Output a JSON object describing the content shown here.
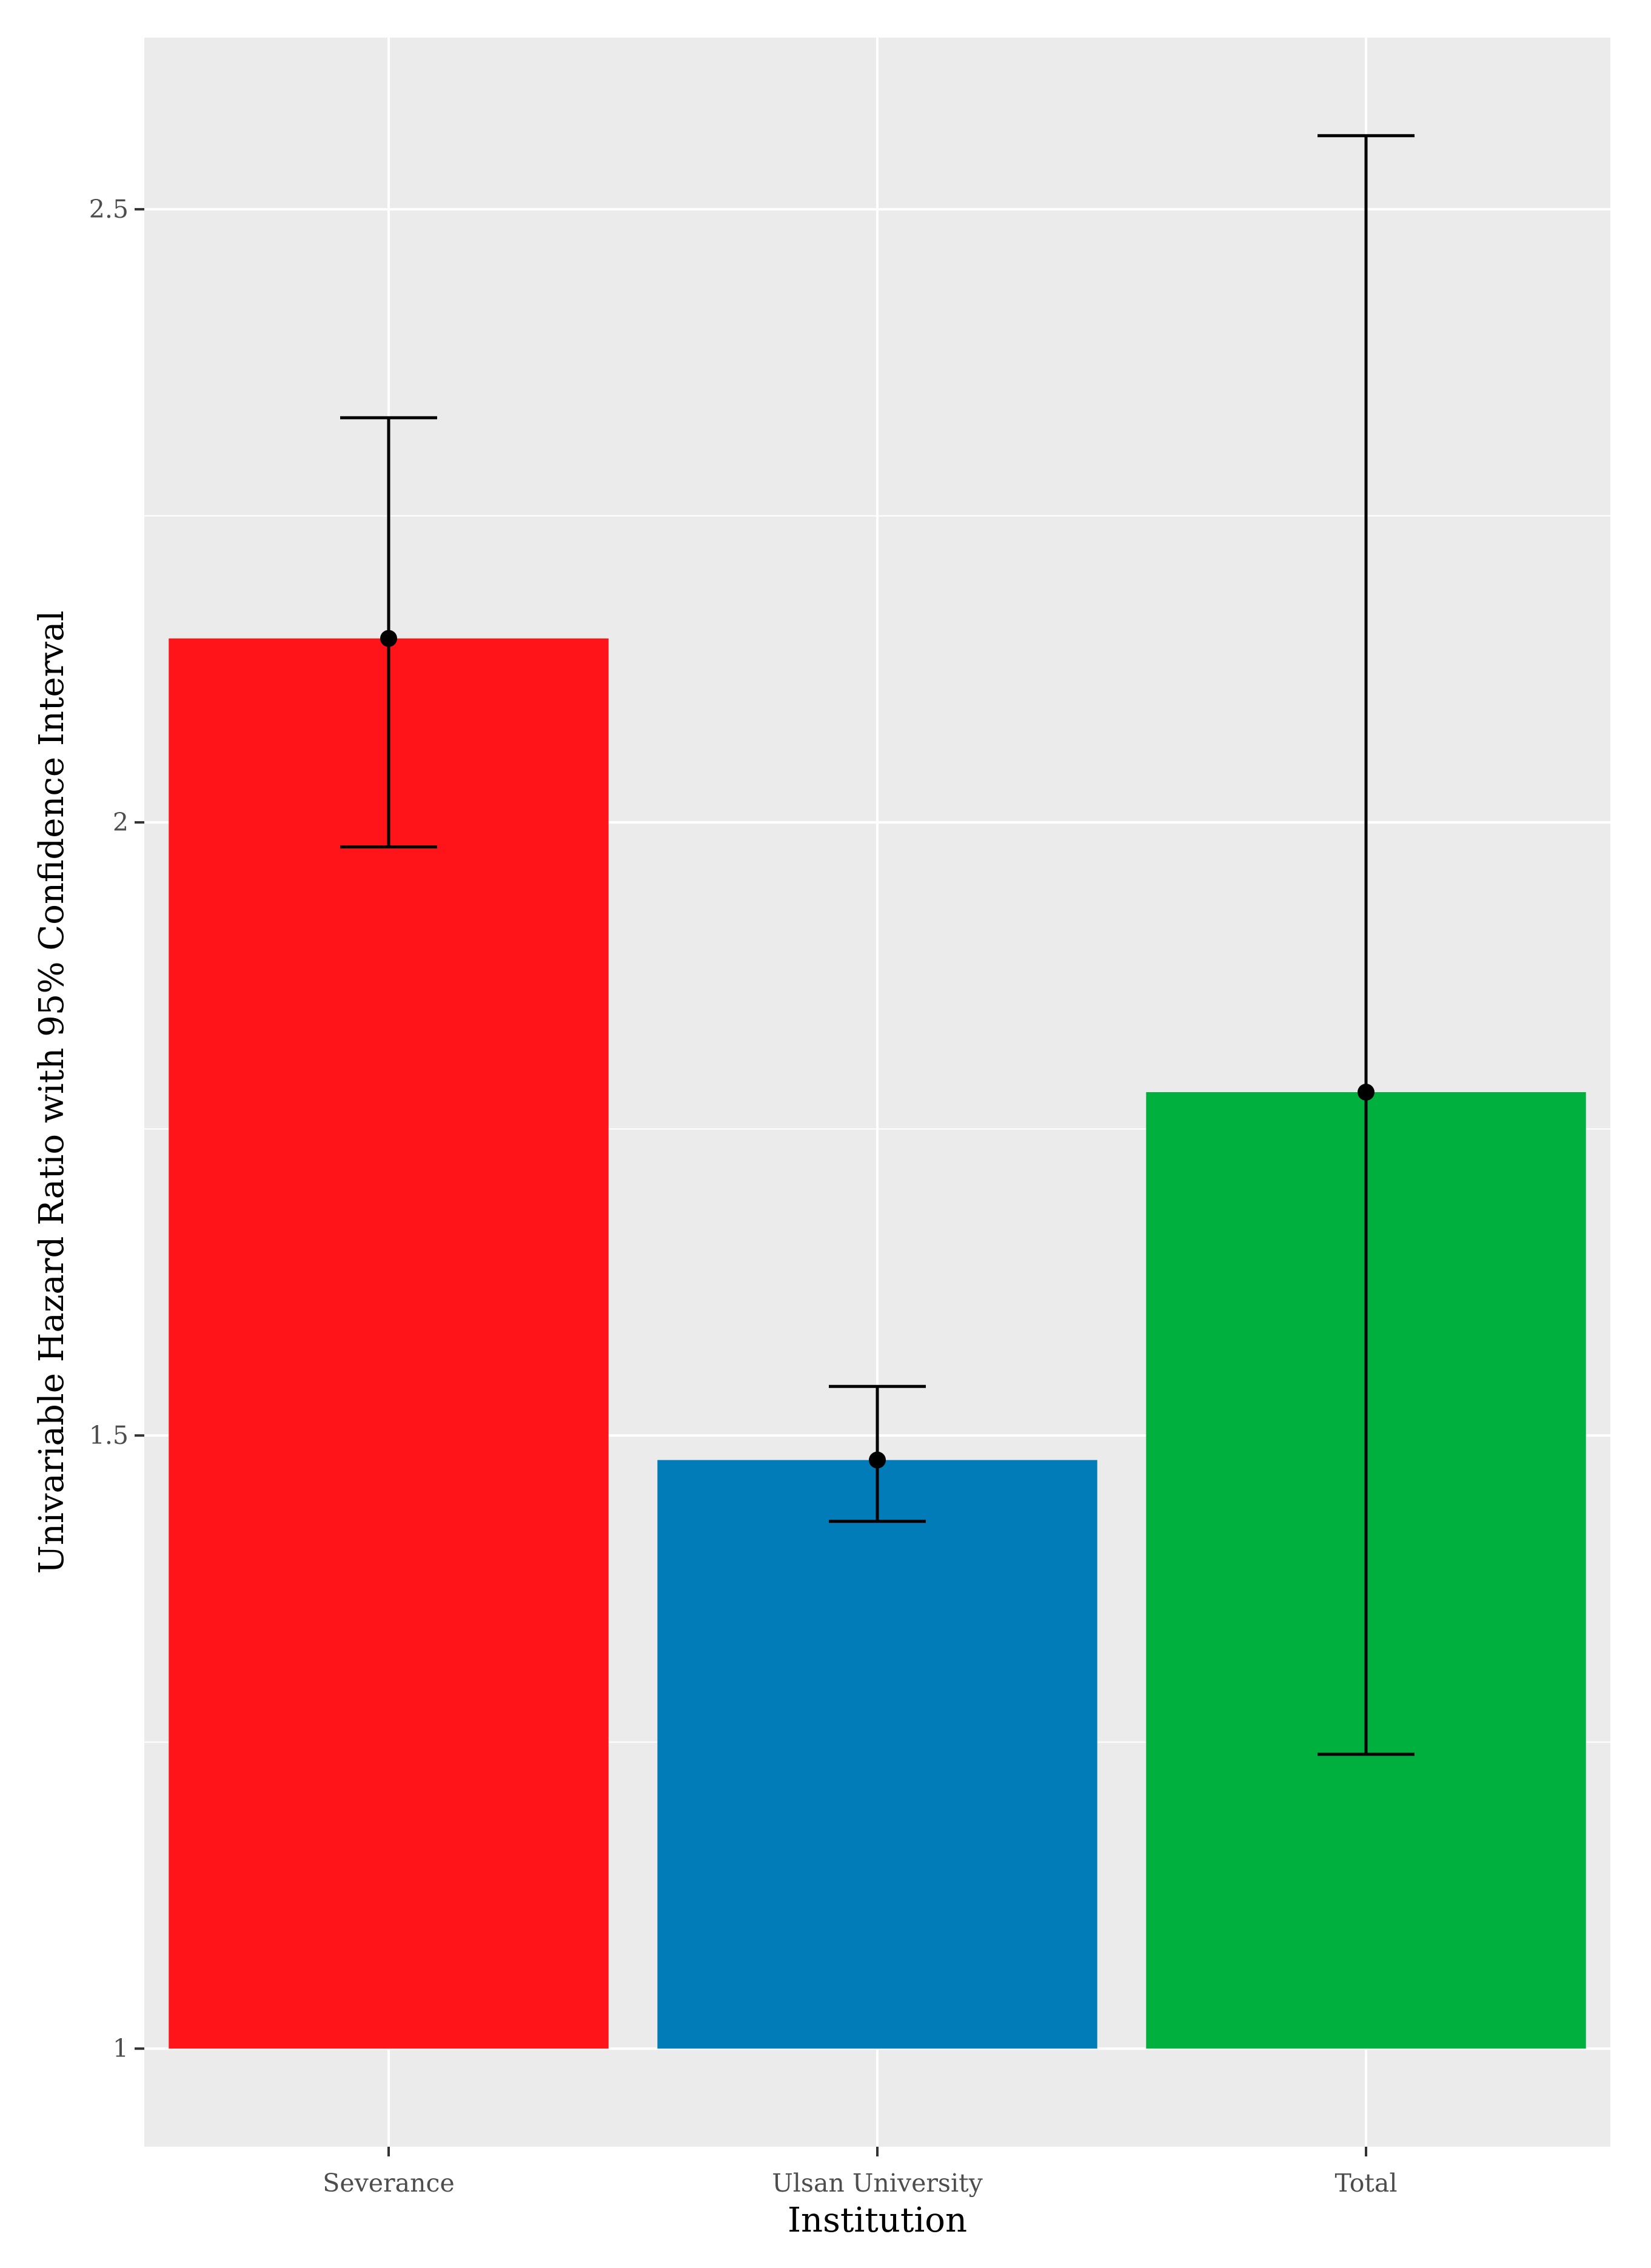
{
  "chart_data": {
    "type": "bar",
    "categories": [
      "Severance",
      "Ulsan University",
      "Total"
    ],
    "values": [
      2.15,
      1.48,
      1.78
    ],
    "ci_lower": [
      1.98,
      1.43,
      1.24
    ],
    "ci_upper": [
      2.33,
      1.54,
      2.56
    ],
    "colors": [
      "#fe1419",
      "#027cb9",
      "#00b03f"
    ],
    "xlabel": "Institution",
    "ylabel": "Univariable Hazard Ratio with 95% Confidence Interval",
    "ylim": [
      0.92,
      2.64
    ],
    "yticks": [
      1,
      1.5,
      2,
      2.5
    ],
    "ytick_labels": [
      "1",
      "1.5",
      "2",
      "2.5"
    ],
    "grid": true,
    "panel_background": "#ebebeb",
    "grid_color": "#ffffff"
  }
}
